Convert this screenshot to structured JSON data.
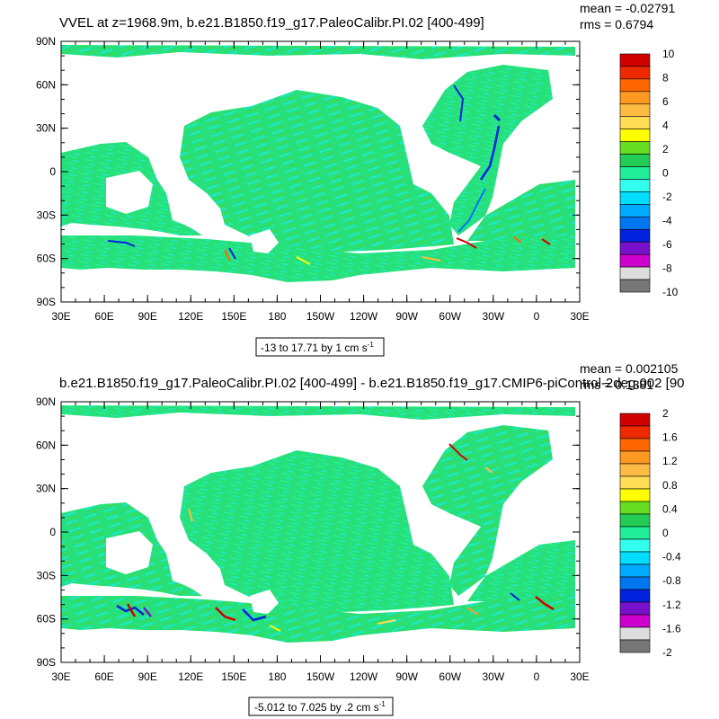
{
  "panels": [
    {
      "title": "VVEL at z=1968.9m, b.e21.B1850.f19_g17.PaleoCalibr.PI.02 [400-499]",
      "mean_label": "mean = -0.02791",
      "rms_label": "rms = 0.6794",
      "range_label": "-13 to 17.71 by 1 cm s",
      "range_unit_sup": "-1",
      "colorbar_labels": [
        "10",
        "8",
        "6",
        "4",
        "2",
        "0",
        "-2",
        "-4",
        "-6",
        "-8",
        "-10"
      ]
    },
    {
      "title": "b.e21.B1850.f19_g17.PaleoCalibr.PI.02 [400-499] - b.e21.B1850.f19_g17.CMIP6-piControl-2deg.002 [90",
      "mean_label": "mean = 0.002105",
      "rms_label": "rms = 0.1381",
      "range_label": "-5.012 to 7.025 by .2 cm s",
      "range_unit_sup": "-1",
      "colorbar_labels": [
        "2",
        "1.6",
        "1.2",
        "0.8",
        "0.4",
        "0",
        "-0.4",
        "-0.8",
        "-1.2",
        "-1.6",
        "-2"
      ]
    }
  ],
  "axes": {
    "lat_labels": [
      "90N",
      "60N",
      "30N",
      "0",
      "30S",
      "60S",
      "90S"
    ],
    "lon_labels": [
      "30E",
      "60E",
      "90E",
      "120E",
      "150E",
      "180",
      "150W",
      "120W",
      "90W",
      "60W",
      "30W",
      "0",
      "30E"
    ]
  },
  "colors": {
    "ocean": "#27e07a",
    "ocean_neg": "#1fe8c8",
    "land": "#ffffff",
    "colorbar": [
      "#d10000",
      "#ee2a00",
      "#ff6600",
      "#ff9922",
      "#ffbb44",
      "#ffdd55",
      "#ffff00",
      "#66dd22",
      "#22cc55",
      "#22ee99",
      "#33ffee",
      "#00ddff",
      "#00aaff",
      "#0077ee",
      "#0022dd",
      "#7711cc",
      "#cc00cc",
      "#dddddd",
      "#777777"
    ]
  }
}
